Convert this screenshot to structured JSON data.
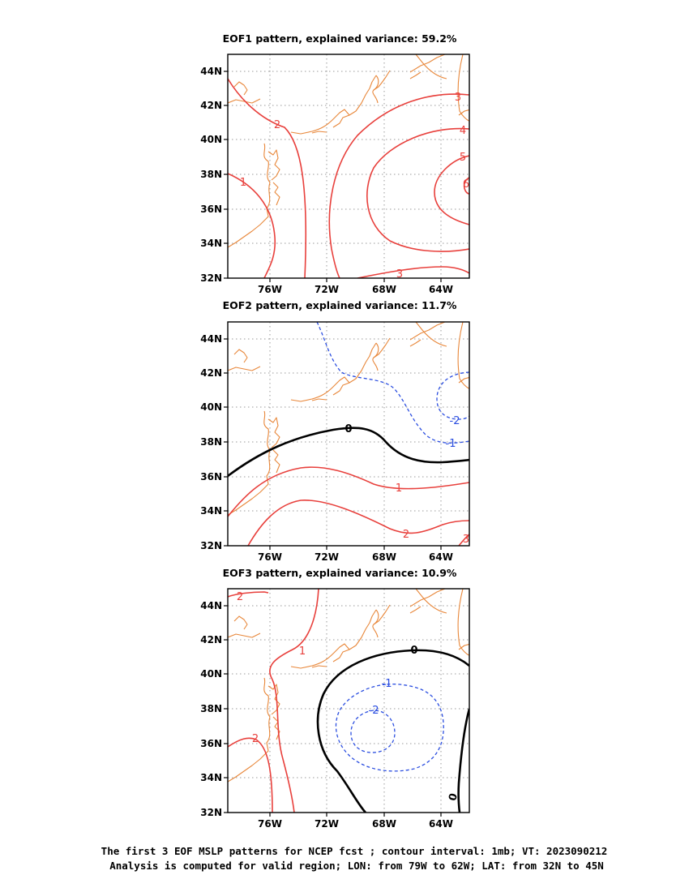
{
  "panels": [
    {
      "title": "EOF1 pattern, explained variance: 59.2%",
      "contours": [
        {
          "value": "1",
          "sign": "pos"
        },
        {
          "value": "2",
          "sign": "pos"
        },
        {
          "value": "3",
          "sign": "pos"
        },
        {
          "value": "4",
          "sign": "pos"
        },
        {
          "value": "5",
          "sign": "pos"
        },
        {
          "value": "6",
          "sign": "pos"
        },
        {
          "value": "3",
          "sign": "pos"
        }
      ]
    },
    {
      "title": "EOF2 pattern, explained variance: 11.7%",
      "contours": [
        {
          "value": "0",
          "sign": "zero"
        },
        {
          "value": "1",
          "sign": "pos"
        },
        {
          "value": "2",
          "sign": "pos"
        },
        {
          "value": "3",
          "sign": "pos"
        },
        {
          "value": "-1",
          "sign": "neg"
        },
        {
          "value": "-2",
          "sign": "neg"
        }
      ]
    },
    {
      "title": "EOF3 pattern, explained variance: 10.9%",
      "contours": [
        {
          "value": "2",
          "sign": "pos"
        },
        {
          "value": "1",
          "sign": "pos"
        },
        {
          "value": "2",
          "sign": "pos"
        },
        {
          "value": "0",
          "sign": "zero"
        },
        {
          "value": "-1",
          "sign": "neg"
        },
        {
          "value": "-2",
          "sign": "neg"
        },
        {
          "value": "0",
          "sign": "zero"
        }
      ]
    }
  ],
  "axes": {
    "lat_labels": [
      "44N",
      "42N",
      "40N",
      "38N",
      "36N",
      "34N",
      "32N"
    ],
    "lon_labels": [
      "76W",
      "72W",
      "68W",
      "64W"
    ]
  },
  "caption": {
    "line1": "The first 3 EOF MSLP patterns for NCEP fcst ; contour interval: 1mb; VT: 2023090212",
    "line2": "Analysis is computed for valid region; LON: from 79W to 62W; LAT: from 32N to 45N"
  },
  "colors": {
    "positive_contour": "#e8403c",
    "negative_contour": "#2b4ee0",
    "zero_contour": "#000000",
    "coastline": "#e8873a",
    "grid": "#9a9a9a"
  }
}
